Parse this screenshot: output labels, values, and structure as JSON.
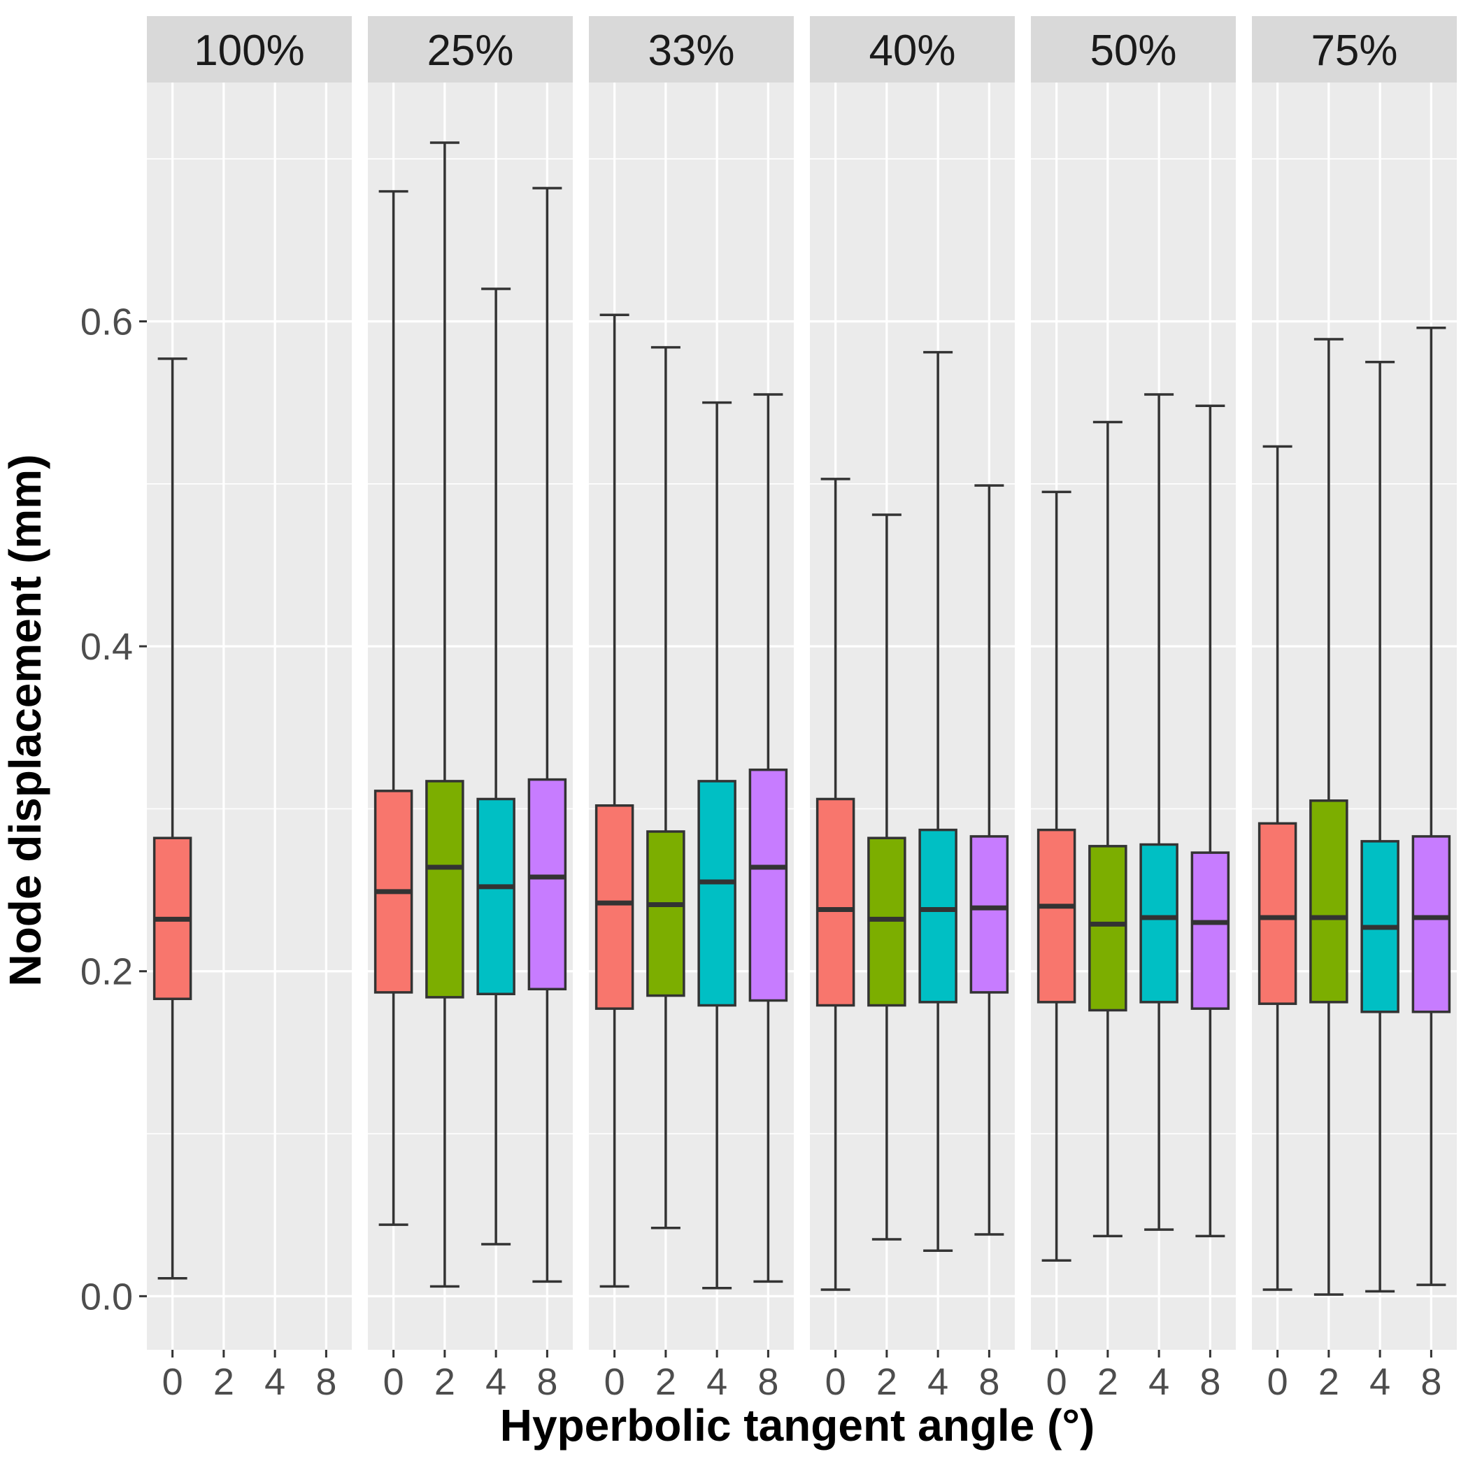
{
  "chart_data": {
    "type": "boxplot",
    "xlabel": "Hyperbolic tangent angle (°)",
    "ylabel": "Node displacement (mm)",
    "ylim": [
      -0.033,
      0.747
    ],
    "yticks": [
      0.0,
      0.2,
      0.4,
      0.6
    ],
    "ytick_labels": [
      "0.0",
      "0.2",
      "0.4",
      "0.6"
    ],
    "categories": [
      "0",
      "2",
      "4",
      "8"
    ],
    "grid": true,
    "legend": "none",
    "colors": {
      "0": "#F8766D",
      "2": "#7CAE00",
      "4": "#00BFC4",
      "8": "#C77CFF"
    },
    "panels": [
      {
        "label": "100%",
        "boxes": [
          {
            "x": "0",
            "min": 0.011,
            "q1": 0.183,
            "median": 0.232,
            "q3": 0.282,
            "max": 0.577
          }
        ]
      },
      {
        "label": "25%",
        "boxes": [
          {
            "x": "0",
            "min": 0.044,
            "q1": 0.187,
            "median": 0.249,
            "q3": 0.311,
            "max": 0.68
          },
          {
            "x": "2",
            "min": 0.006,
            "q1": 0.184,
            "median": 0.264,
            "q3": 0.317,
            "max": 0.71
          },
          {
            "x": "4",
            "min": 0.032,
            "q1": 0.186,
            "median": 0.252,
            "q3": 0.306,
            "max": 0.62
          },
          {
            "x": "8",
            "min": 0.009,
            "q1": 0.189,
            "median": 0.258,
            "q3": 0.318,
            "max": 0.682
          }
        ]
      },
      {
        "label": "33%",
        "boxes": [
          {
            "x": "0",
            "min": 0.006,
            "q1": 0.177,
            "median": 0.242,
            "q3": 0.302,
            "max": 0.604
          },
          {
            "x": "2",
            "min": 0.042,
            "q1": 0.185,
            "median": 0.241,
            "q3": 0.286,
            "max": 0.584
          },
          {
            "x": "4",
            "min": 0.005,
            "q1": 0.179,
            "median": 0.255,
            "q3": 0.317,
            "max": 0.55
          },
          {
            "x": "8",
            "min": 0.009,
            "q1": 0.182,
            "median": 0.264,
            "q3": 0.324,
            "max": 0.555
          }
        ]
      },
      {
        "label": "40%",
        "boxes": [
          {
            "x": "0",
            "min": 0.004,
            "q1": 0.179,
            "median": 0.238,
            "q3": 0.306,
            "max": 0.503
          },
          {
            "x": "2",
            "min": 0.035,
            "q1": 0.179,
            "median": 0.232,
            "q3": 0.282,
            "max": 0.481
          },
          {
            "x": "4",
            "min": 0.028,
            "q1": 0.181,
            "median": 0.238,
            "q3": 0.287,
            "max": 0.581
          },
          {
            "x": "8",
            "min": 0.038,
            "q1": 0.187,
            "median": 0.239,
            "q3": 0.283,
            "max": 0.499
          }
        ]
      },
      {
        "label": "50%",
        "boxes": [
          {
            "x": "0",
            "min": 0.022,
            "q1": 0.181,
            "median": 0.24,
            "q3": 0.287,
            "max": 0.495
          },
          {
            "x": "2",
            "min": 0.037,
            "q1": 0.176,
            "median": 0.229,
            "q3": 0.277,
            "max": 0.538
          },
          {
            "x": "4",
            "min": 0.041,
            "q1": 0.181,
            "median": 0.233,
            "q3": 0.278,
            "max": 0.555
          },
          {
            "x": "8",
            "min": 0.037,
            "q1": 0.177,
            "median": 0.23,
            "q3": 0.273,
            "max": 0.548
          }
        ]
      },
      {
        "label": "75%",
        "boxes": [
          {
            "x": "0",
            "min": 0.004,
            "q1": 0.18,
            "median": 0.233,
            "q3": 0.291,
            "max": 0.523
          },
          {
            "x": "2",
            "min": 0.001,
            "q1": 0.181,
            "median": 0.233,
            "q3": 0.305,
            "max": 0.589
          },
          {
            "x": "4",
            "min": 0.003,
            "q1": 0.175,
            "median": 0.227,
            "q3": 0.28,
            "max": 0.575
          },
          {
            "x": "8",
            "min": 0.007,
            "q1": 0.175,
            "median": 0.233,
            "q3": 0.283,
            "max": 0.596
          }
        ]
      }
    ]
  }
}
